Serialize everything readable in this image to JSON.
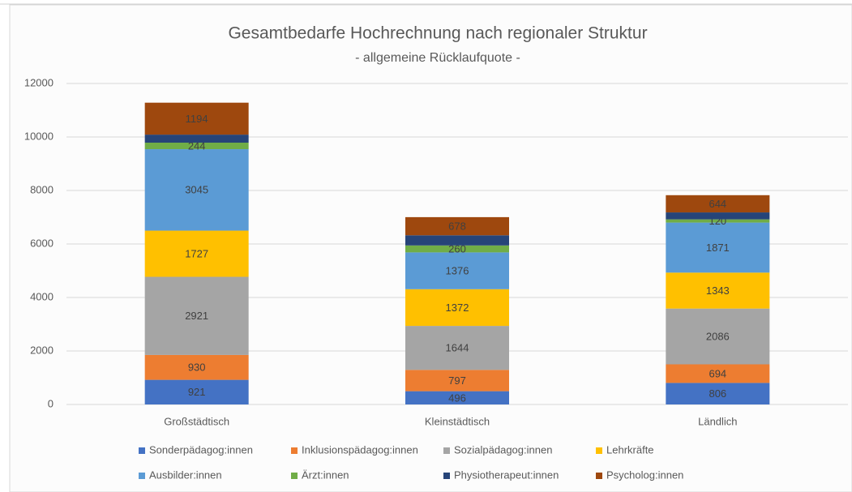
{
  "chart_data": {
    "type": "stacked_bar",
    "title": "Gesamtbedarfe Hochrechnung nach regionaler Struktur",
    "subtitle": "- allgemeine Rücklaufquote -",
    "categories": [
      "Großstädtisch",
      "Kleinstädtisch",
      "Ländlich"
    ],
    "series": [
      {
        "name": "Sonderpädagog:innen",
        "color": "#4472c4",
        "values": [
          921,
          496,
          806
        ]
      },
      {
        "name": "Inklusionspädagog:innen",
        "color": "#ed7d31",
        "values": [
          930,
          797,
          694
        ]
      },
      {
        "name": "Sozialpädagog:innen",
        "color": "#a5a5a5",
        "values": [
          2921,
          1644,
          2086
        ]
      },
      {
        "name": "Lehrkräfte",
        "color": "#ffc000",
        "values": [
          1727,
          1372,
          1343
        ]
      },
      {
        "name": "Ausbilder:innen",
        "color": "#5b9bd5",
        "values": [
          3045,
          1376,
          1871
        ]
      },
      {
        "name": "Ärzt:innen",
        "color": "#70ad47",
        "values": [
          244,
          260,
          120
        ]
      },
      {
        "name": "Physiotherapeut:innen",
        "color": "#264478",
        "values": [
          300,
          380,
          260
        ],
        "data_labels": false
      },
      {
        "name": "Psycholog:innen",
        "color": "#9e480e",
        "values": [
          1194,
          678,
          644
        ]
      }
    ],
    "ylim": [
      0,
      12000
    ],
    "yticks": [
      0,
      2000,
      4000,
      6000,
      8000,
      10000,
      12000
    ],
    "grid": true
  }
}
